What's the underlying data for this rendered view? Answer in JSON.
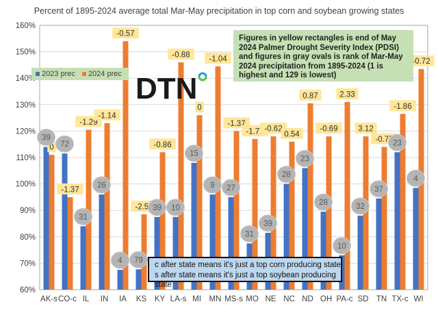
{
  "chart_data": {
    "type": "bar",
    "title": "Percent of 1895-2024 average  total Mar-May precipitation in top corn and soybean growing states",
    "xlabel": "",
    "ylabel": "",
    "ylim": [
      60,
      160
    ],
    "yticks": [
      60,
      70,
      80,
      90,
      100,
      110,
      120,
      130,
      140,
      150,
      160
    ],
    "ytick_labels": [
      "60%",
      "70%",
      "80%",
      "90%",
      "100%",
      "110%",
      "120%",
      "130%",
      "140%",
      "150%",
      "160%"
    ],
    "grid": true,
    "legend_position": "upper-left",
    "categories": [
      "AK-s",
      "CO-c",
      "IL",
      "IN",
      "IA",
      "KS",
      "KY",
      "LA-s",
      "MI",
      "MN",
      "MS-s",
      "MO",
      "NE",
      "NC",
      "ND",
      "OH",
      "PA-c",
      "SD",
      "TN",
      "TX-c",
      "WI"
    ],
    "series": [
      {
        "name": "2023 prec",
        "color": "#4472c4",
        "values": [
          114,
          111.5,
          84,
          96,
          67.5,
          67.7,
          87.5,
          87.5,
          108,
          96,
          95,
          77.5,
          81.5,
          100,
          106,
          89.5,
          73,
          88,
          94.5,
          112,
          98.5
        ]
      },
      {
        "name": "2024 prec",
        "color": "#ed7d31",
        "values": [
          111,
          95,
          120.5,
          123,
          154,
          88.5,
          112,
          146,
          126,
          144.5,
          120,
          117,
          118,
          116,
          130.5,
          118,
          131,
          118,
          114,
          126.5,
          143.5
        ]
      }
    ],
    "pdsi_labels": [
      "0",
      "-1.37",
      "-1.29",
      "-1.14",
      "-0.57",
      "-2.56",
      "-0.86",
      "-0.88",
      "0",
      "-1.04",
      "-1.37",
      "-1.77",
      "-0.62",
      "0.54",
      "0.87",
      "-0.69",
      "2.33",
      "3.12",
      "-0.77",
      "-1.86",
      "-0.72"
    ],
    "rank_labels": [
      "39",
      "72",
      "31",
      "26",
      "4",
      "79",
      "39",
      "10",
      "15",
      "9",
      "27",
      "31",
      "39",
      "28",
      "23",
      "28",
      "10",
      "32",
      "37",
      "23",
      "4"
    ],
    "annotations": {
      "note": "Figures in yellow rectangles is end of May 2024 Palmer Drought Severity Index (PDSI) and figures in gray ovals is rank of Mar-May 2024 precipitation from 1895-2024 (1 is highest and 129 is lowest)",
      "key_line1": "c after state means it's just a top corn producing state",
      "key_line2": "s after state means it's just a top soybean producing state"
    }
  },
  "legend": {
    "item1": "2023 prec",
    "item2": "2024 prec"
  },
  "logo": {
    "text": "DTN"
  }
}
